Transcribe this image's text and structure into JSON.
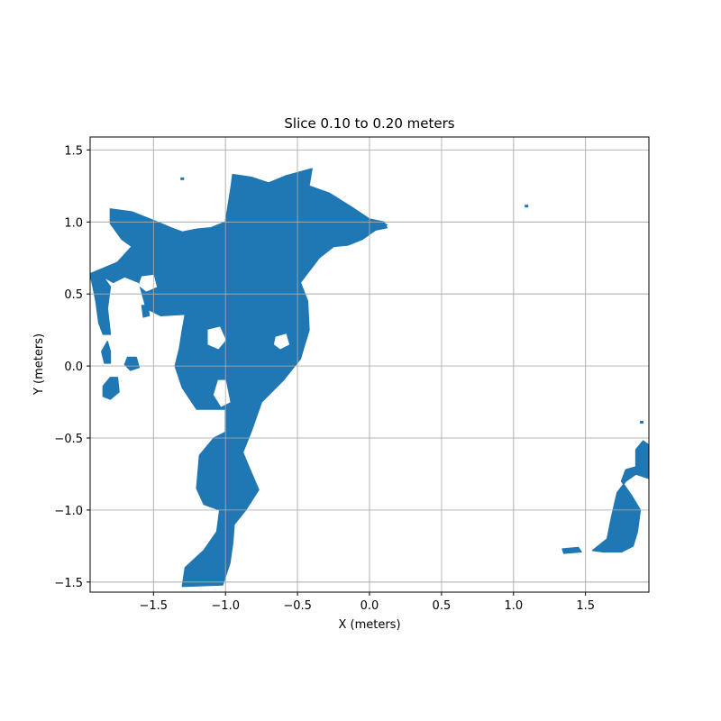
{
  "chart_data": {
    "type": "scatter",
    "title": "Slice 0.10 to 0.20 meters",
    "xlabel": "X (meters)",
    "ylabel": "Y (meters)",
    "xlim": [
      -1.94,
      1.94
    ],
    "ylim": [
      -1.57,
      1.59
    ],
    "grid": true,
    "series_color": "#1f77b4",
    "xticks": [
      {
        "value": -1.5,
        "label": "−1.5"
      },
      {
        "value": -1.0,
        "label": "−1.0"
      },
      {
        "value": -0.5,
        "label": "−0.5"
      },
      {
        "value": 0.0,
        "label": "0.0"
      },
      {
        "value": 0.5,
        "label": "0.5"
      },
      {
        "value": 1.0,
        "label": "1.0"
      },
      {
        "value": 1.5,
        "label": "1.5"
      }
    ],
    "yticks": [
      {
        "value": -1.5,
        "label": "−1.5"
      },
      {
        "value": -1.0,
        "label": "−1.0"
      },
      {
        "value": -0.5,
        "label": "−0.5"
      },
      {
        "value": 0.0,
        "label": "0.0"
      },
      {
        "value": 0.5,
        "label": "0.5"
      },
      {
        "value": 1.0,
        "label": "1.0"
      },
      {
        "value": 1.5,
        "label": "1.5"
      }
    ],
    "regions": [
      {
        "name": "main-region",
        "outline": [
          [
            -1.8,
            1.09
          ],
          [
            -1.65,
            1.07
          ],
          [
            -1.55,
            1.03
          ],
          [
            -1.45,
            0.99
          ],
          [
            -1.38,
            0.96
          ],
          [
            -1.3,
            0.93
          ],
          [
            -1.2,
            0.95
          ],
          [
            -1.1,
            0.96
          ],
          [
            -1.0,
            1.0
          ],
          [
            -0.96,
            1.25
          ],
          [
            -0.95,
            1.33
          ],
          [
            -0.82,
            1.31
          ],
          [
            -0.7,
            1.27
          ],
          [
            -0.58,
            1.32
          ],
          [
            -0.4,
            1.37
          ],
          [
            -0.42,
            1.25
          ],
          [
            -0.28,
            1.2
          ],
          [
            -0.12,
            1.1
          ],
          [
            0.0,
            1.02
          ],
          [
            0.12,
            0.98
          ],
          [
            0.05,
            0.95
          ],
          [
            -0.05,
            0.88
          ],
          [
            -0.15,
            0.84
          ],
          [
            -0.25,
            0.83
          ],
          [
            -0.35,
            0.75
          ],
          [
            -0.48,
            0.58
          ],
          [
            -0.43,
            0.45
          ],
          [
            -0.42,
            0.25
          ],
          [
            -0.48,
            0.05
          ],
          [
            -0.6,
            -0.1
          ],
          [
            -0.75,
            -0.25
          ],
          [
            -0.82,
            -0.45
          ],
          [
            -0.88,
            -0.6
          ],
          [
            -0.83,
            -0.72
          ],
          [
            -0.77,
            -0.86
          ],
          [
            -0.86,
            -1.0
          ],
          [
            -0.94,
            -1.1
          ],
          [
            -0.95,
            -1.23
          ],
          [
            -0.97,
            -1.37
          ],
          [
            -1.02,
            -1.52
          ],
          [
            -1.3,
            -1.53
          ],
          [
            -1.28,
            -1.4
          ],
          [
            -1.15,
            -1.28
          ],
          [
            -1.06,
            -1.15
          ],
          [
            -1.04,
            -1.0
          ],
          [
            -1.15,
            -0.96
          ],
          [
            -1.2,
            -0.85
          ],
          [
            -1.18,
            -0.62
          ],
          [
            -1.08,
            -0.5
          ],
          [
            -1.0,
            -0.46
          ],
          [
            -1.0,
            -0.3
          ],
          [
            -1.2,
            -0.3
          ],
          [
            -1.3,
            -0.15
          ],
          [
            -1.35,
            0.0
          ],
          [
            -1.32,
            0.12
          ],
          [
            -1.3,
            0.25
          ],
          [
            -1.28,
            0.36
          ],
          [
            -1.45,
            0.35
          ],
          [
            -1.55,
            0.4
          ],
          [
            -1.6,
            0.58
          ],
          [
            -1.7,
            0.62
          ],
          [
            -1.78,
            0.58
          ],
          [
            -1.85,
            0.62
          ],
          [
            -1.94,
            0.64
          ],
          [
            -1.75,
            0.72
          ],
          [
            -1.65,
            0.83
          ],
          [
            -1.72,
            0.88
          ],
          [
            -1.8,
            0.99
          ]
        ]
      },
      {
        "name": "left-strip",
        "outline": [
          [
            -1.94,
            0.64
          ],
          [
            -1.85,
            0.62
          ],
          [
            -1.8,
            0.55
          ],
          [
            -1.82,
            0.4
          ],
          [
            -1.8,
            0.22
          ],
          [
            -1.85,
            0.22
          ],
          [
            -1.88,
            0.3
          ],
          [
            -1.9,
            0.45
          ],
          [
            -1.92,
            0.55
          ]
        ]
      },
      {
        "name": "left-blob-upper",
        "outline": [
          [
            -1.82,
            0.17
          ],
          [
            -1.8,
            0.1
          ],
          [
            -1.8,
            0.02
          ],
          [
            -1.84,
            0.02
          ],
          [
            -1.86,
            0.1
          ]
        ]
      },
      {
        "name": "left-blob-lower",
        "outline": [
          [
            -1.85,
            -0.14
          ],
          [
            -1.8,
            -0.08
          ],
          [
            -1.75,
            -0.08
          ],
          [
            -1.74,
            -0.18
          ],
          [
            -1.8,
            -0.23
          ],
          [
            -1.85,
            -0.21
          ]
        ]
      },
      {
        "name": "small-blob-a",
        "outline": [
          [
            -1.68,
            0.06
          ],
          [
            -1.62,
            0.06
          ],
          [
            -1.6,
            -0.01
          ],
          [
            -1.66,
            -0.03
          ],
          [
            -1.7,
            0.01
          ]
        ]
      },
      {
        "name": "small-blob-b",
        "outline": [
          [
            -1.58,
            0.42
          ],
          [
            -1.54,
            0.42
          ],
          [
            -1.53,
            0.35
          ],
          [
            -1.57,
            0.34
          ]
        ]
      },
      {
        "name": "top-right-tip",
        "outline": [
          [
            0.0,
            1.02
          ],
          [
            0.1,
            1.0
          ],
          [
            0.12,
            0.96
          ],
          [
            0.02,
            0.94
          ],
          [
            -0.05,
            0.96
          ]
        ]
      },
      {
        "name": "right-main-region",
        "outline": [
          [
            1.55,
            -1.28
          ],
          [
            1.65,
            -1.2
          ],
          [
            1.68,
            -1.05
          ],
          [
            1.72,
            -0.88
          ],
          [
            1.78,
            -0.8
          ],
          [
            1.85,
            -0.75
          ],
          [
            1.94,
            -0.78
          ],
          [
            1.94,
            -0.55
          ],
          [
            1.9,
            -0.52
          ],
          [
            1.85,
            -0.58
          ],
          [
            1.85,
            -0.7
          ],
          [
            1.78,
            -0.72
          ],
          [
            1.75,
            -0.8
          ],
          [
            1.82,
            -0.9
          ],
          [
            1.88,
            -1.0
          ],
          [
            1.86,
            -1.15
          ],
          [
            1.83,
            -1.25
          ],
          [
            1.75,
            -1.29
          ],
          [
            1.62,
            -1.29
          ]
        ]
      },
      {
        "name": "right-small-fragment",
        "outline": [
          [
            1.34,
            -1.27
          ],
          [
            1.45,
            -1.26
          ],
          [
            1.47,
            -1.29
          ],
          [
            1.35,
            -1.3
          ]
        ]
      }
    ],
    "holes": [
      {
        "name": "hole-left-upper",
        "outline": [
          [
            -1.58,
            0.62
          ],
          [
            -1.5,
            0.63
          ],
          [
            -1.48,
            0.55
          ],
          [
            -1.55,
            0.52
          ],
          [
            -1.6,
            0.56
          ]
        ]
      },
      {
        "name": "hole-center",
        "outline": [
          [
            -1.12,
            0.25
          ],
          [
            -1.04,
            0.27
          ],
          [
            -1.0,
            0.18
          ],
          [
            -1.05,
            0.12
          ],
          [
            -1.12,
            0.15
          ]
        ]
      },
      {
        "name": "hole-center-lower",
        "outline": [
          [
            -1.05,
            -0.1
          ],
          [
            -1.0,
            -0.1
          ],
          [
            -0.97,
            -0.25
          ],
          [
            -1.03,
            -0.28
          ],
          [
            -1.08,
            -0.2
          ]
        ]
      },
      {
        "name": "hole-right-main",
        "outline": [
          [
            -0.65,
            0.2
          ],
          [
            -0.58,
            0.22
          ],
          [
            -0.56,
            0.15
          ],
          [
            -0.62,
            0.12
          ],
          [
            -0.66,
            0.15
          ]
        ]
      }
    ],
    "isolated_points": [
      {
        "x": -1.3,
        "y": 1.3
      },
      {
        "x": 1.09,
        "y": 1.11
      },
      {
        "x": -0.88,
        "y": 0.7
      },
      {
        "x": 1.89,
        "y": -0.39
      }
    ]
  }
}
